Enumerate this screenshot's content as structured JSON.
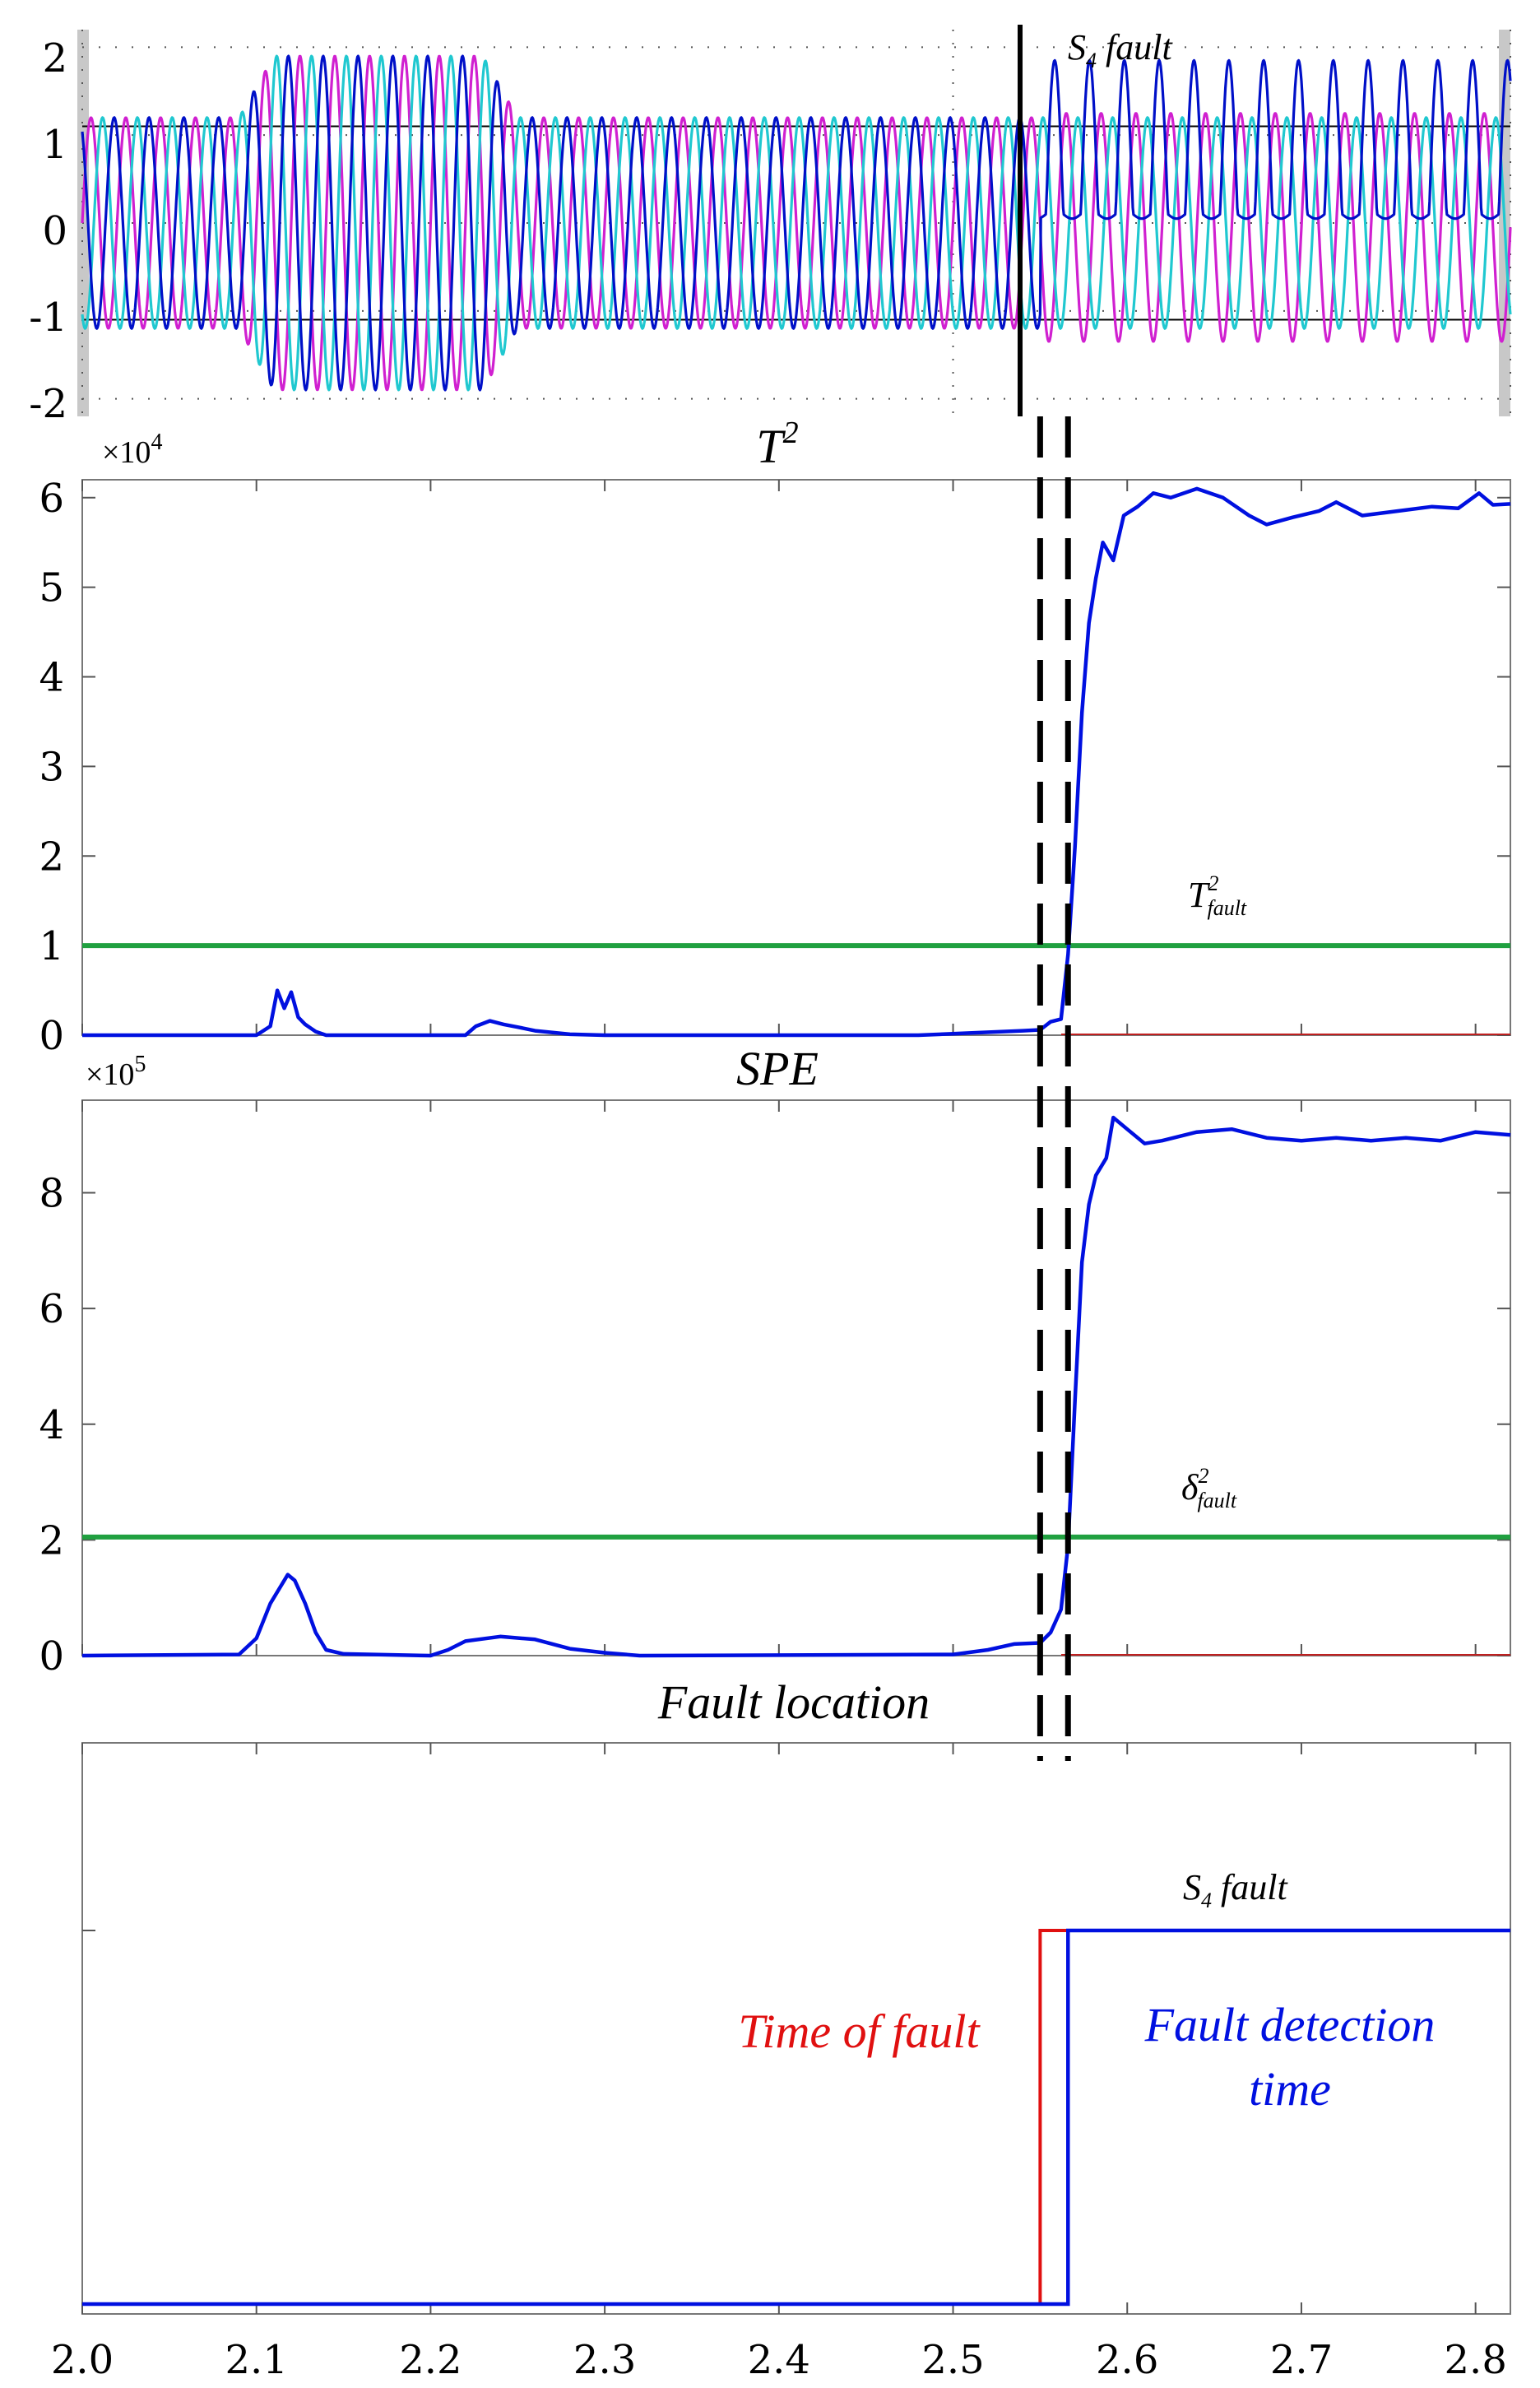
{
  "chart_data": [
    {
      "type": "line",
      "title": "",
      "xlabel": "",
      "ylabel": "",
      "xlim": [
        2.0,
        2.82
      ],
      "ylim": [
        -2.2,
        2.2
      ],
      "y_ticks": [
        "2",
        "1",
        "0",
        "-1",
        "-2"
      ],
      "grid": true,
      "series": [
        {
          "color": "#d020d0",
          "description": "phase a",
          "before_fault_amplitude": 1.2,
          "disturbance_amplitude": 1.9,
          "after_fault_amplitude": 1.3
        },
        {
          "color": "#20c8d0",
          "description": "phase b",
          "before_fault_amplitude": 1.2,
          "disturbance_amplitude": 1.9,
          "after_fault_amplitude": 1.2
        },
        {
          "color": "#0010c8",
          "description": "phase c",
          "before_fault_amplitude": 1.2,
          "disturbance_amplitude": 1.9,
          "after_fault_min": 0.1,
          "after_fault_max": 1.85
        }
      ],
      "disturbance_interval": [
        2.09,
        2.25
      ],
      "fault_time": 2.55,
      "annotation": {
        "main": "S",
        "sub": "4",
        "rest": " fault"
      }
    },
    {
      "type": "line",
      "title": {
        "main": "T",
        "sup": "2"
      },
      "exponent": {
        "base": "×10",
        "power": "4"
      },
      "ylim": [
        0,
        6.2
      ],
      "y_ticks": [
        "0",
        "1",
        "2",
        "3",
        "4",
        "5",
        "6"
      ],
      "threshold": 1.0,
      "threshold_label": {
        "main": "T",
        "sup": "2",
        "sub": "fault"
      },
      "series_color": "#0010e0",
      "threshold_color": "#20a040",
      "points": [
        [
          2.0,
          0.0
        ],
        [
          2.1,
          0.0
        ],
        [
          2.108,
          0.1
        ],
        [
          2.112,
          0.5
        ],
        [
          2.116,
          0.3
        ],
        [
          2.12,
          0.48
        ],
        [
          2.124,
          0.2
        ],
        [
          2.128,
          0.12
        ],
        [
          2.134,
          0.04
        ],
        [
          2.14,
          0.0
        ],
        [
          2.22,
          0.0
        ],
        [
          2.226,
          0.1
        ],
        [
          2.234,
          0.16
        ],
        [
          2.242,
          0.12
        ],
        [
          2.25,
          0.09
        ],
        [
          2.26,
          0.05
        ],
        [
          2.28,
          0.01
        ],
        [
          2.3,
          0.0
        ],
        [
          2.48,
          0.0
        ],
        [
          2.54,
          0.05
        ],
        [
          2.55,
          0.06
        ],
        [
          2.556,
          0.15
        ],
        [
          2.562,
          0.18
        ],
        [
          2.566,
          0.9
        ],
        [
          2.57,
          2.1
        ],
        [
          2.574,
          3.6
        ],
        [
          2.578,
          4.6
        ],
        [
          2.582,
          5.1
        ],
        [
          2.586,
          5.5
        ],
        [
          2.592,
          5.3
        ],
        [
          2.598,
          5.8
        ],
        [
          2.606,
          5.9
        ],
        [
          2.615,
          6.05
        ],
        [
          2.625,
          6.0
        ],
        [
          2.64,
          6.1
        ],
        [
          2.655,
          6.0
        ],
        [
          2.67,
          5.8
        ],
        [
          2.68,
          5.7
        ],
        [
          2.695,
          5.78
        ],
        [
          2.71,
          5.85
        ],
        [
          2.72,
          5.95
        ],
        [
          2.735,
          5.8
        ],
        [
          2.755,
          5.85
        ],
        [
          2.775,
          5.9
        ],
        [
          2.79,
          5.88
        ],
        [
          2.802,
          6.05
        ],
        [
          2.81,
          5.92
        ],
        [
          2.82,
          5.93
        ]
      ]
    },
    {
      "type": "line",
      "title": "SPE",
      "exponent": {
        "base": "×10",
        "power": "5"
      },
      "ylim": [
        0,
        9.6
      ],
      "y_ticks": [
        "0",
        "2",
        "4",
        "6",
        "8"
      ],
      "threshold": 2.05,
      "threshold_label": {
        "main": "δ",
        "sup": "2",
        "sub": "fault"
      },
      "series_color": "#0010e0",
      "threshold_color": "#20a040",
      "points": [
        [
          2.0,
          0.0
        ],
        [
          2.09,
          0.02
        ],
        [
          2.1,
          0.3
        ],
        [
          2.108,
          0.9
        ],
        [
          2.114,
          1.2
        ],
        [
          2.118,
          1.4
        ],
        [
          2.122,
          1.3
        ],
        [
          2.128,
          0.9
        ],
        [
          2.134,
          0.4
        ],
        [
          2.14,
          0.1
        ],
        [
          2.15,
          0.03
        ],
        [
          2.2,
          0.0
        ],
        [
          2.21,
          0.1
        ],
        [
          2.22,
          0.25
        ],
        [
          2.24,
          0.33
        ],
        [
          2.26,
          0.28
        ],
        [
          2.28,
          0.12
        ],
        [
          2.3,
          0.05
        ],
        [
          2.32,
          0.0
        ],
        [
          2.5,
          0.02
        ],
        [
          2.52,
          0.1
        ],
        [
          2.535,
          0.2
        ],
        [
          2.55,
          0.22
        ],
        [
          2.556,
          0.4
        ],
        [
          2.562,
          0.8
        ],
        [
          2.566,
          1.9
        ],
        [
          2.57,
          4.4
        ],
        [
          2.574,
          6.8
        ],
        [
          2.578,
          7.8
        ],
        [
          2.582,
          8.3
        ],
        [
          2.588,
          8.6
        ],
        [
          2.592,
          9.3
        ],
        [
          2.6,
          9.1
        ],
        [
          2.61,
          8.85
        ],
        [
          2.62,
          8.9
        ],
        [
          2.64,
          9.05
        ],
        [
          2.66,
          9.1
        ],
        [
          2.68,
          8.95
        ],
        [
          2.7,
          8.9
        ],
        [
          2.72,
          8.95
        ],
        [
          2.74,
          8.9
        ],
        [
          2.76,
          8.95
        ],
        [
          2.78,
          8.9
        ],
        [
          2.8,
          9.05
        ],
        [
          2.82,
          9.0
        ]
      ]
    },
    {
      "type": "line",
      "title": "Fault location",
      "xlim": [
        2.0,
        2.82
      ],
      "x_ticks": [
        "2.0",
        "2.1",
        "2.2",
        "2.3",
        "2.4",
        "2.5",
        "2.6",
        "2.7",
        "2.8"
      ],
      "level_label": {
        "main": "S",
        "sub": "4",
        "rest": " fault"
      },
      "fault_time": 2.55,
      "detection_time": 2.566,
      "time_of_fault_label": "Time of fault",
      "detection_label_line1": "Fault detection",
      "detection_label_line2": "time",
      "fault_color": "#e01010",
      "detection_color": "#0010e0"
    }
  ]
}
